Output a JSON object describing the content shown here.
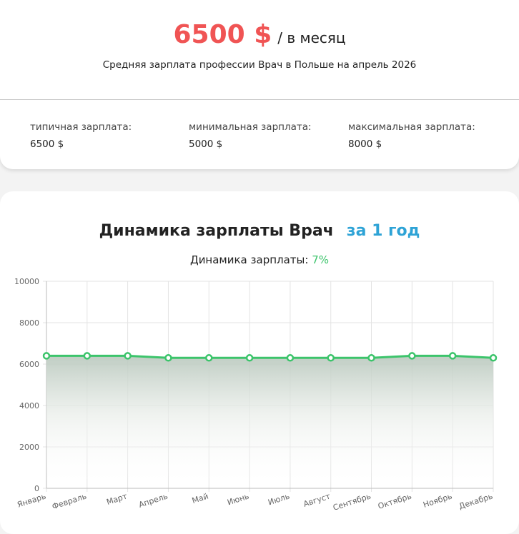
{
  "header": {
    "amount": "6500 $",
    "period": "/ в месяц",
    "subtitle": "Средняя зарплата профессии Врач в Польше на апрель 2026"
  },
  "stats": [
    {
      "label": "типичная зарплата:",
      "value": "6500 $"
    },
    {
      "label": "минимальная зарплата:",
      "value": "5000 $"
    },
    {
      "label": "максимальная зарплата:",
      "value": "8000 $"
    }
  ],
  "chart_section": {
    "title": "Динамика зарплаты Врач",
    "period_link": "за 1 год",
    "change_label": "Динамика зарплаты:",
    "change_value": "7%"
  },
  "chart_data": {
    "type": "line",
    "categories": [
      "Январь",
      "Февраль",
      "Март",
      "Апрель",
      "Май",
      "Июнь",
      "Июль",
      "Август",
      "Сентябрь",
      "Октябрь",
      "Ноябрь",
      "Декабрь"
    ],
    "series": [
      {
        "color": "#3cc46b",
        "values": [
          6400,
          6400,
          6400,
          6300,
          6300,
          6300,
          6300,
          6300,
          6300,
          6400,
          6400,
          6300
        ]
      }
    ],
    "ylim": [
      0,
      10000
    ],
    "yticks": [
      0,
      2000,
      4000,
      6000,
      8000,
      10000
    ],
    "grid": true
  }
}
